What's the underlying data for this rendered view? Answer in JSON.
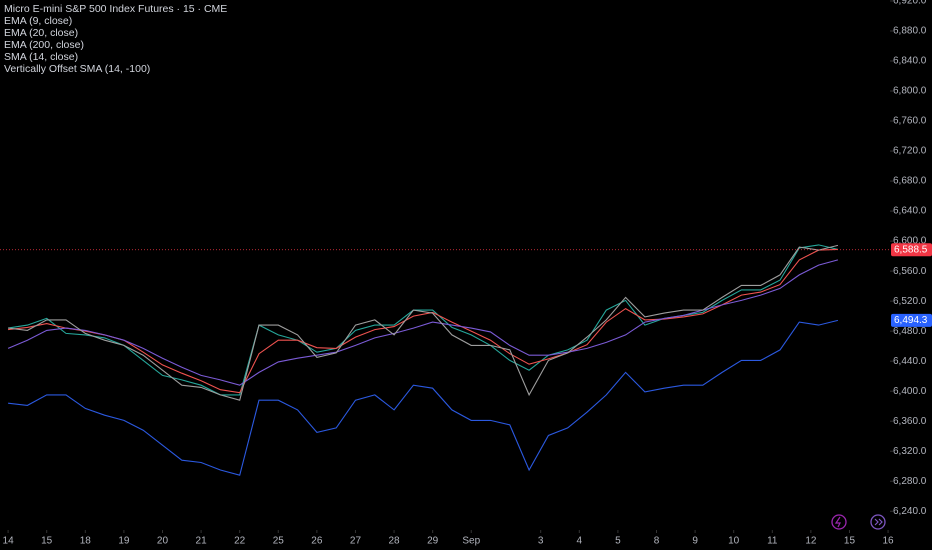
{
  "chart_data": {
    "type": "line",
    "title": "Micro E-mini S&P 500 Index Futures · 15 · CME",
    "x": [
      0,
      0.5,
      1,
      1.5,
      2,
      2.5,
      3,
      3.5,
      4,
      4.5,
      5,
      5.5,
      6,
      6.5,
      7,
      7.5,
      8,
      8.5,
      9,
      9.5,
      10,
      10.5,
      11,
      11.5,
      12,
      12.5,
      13,
      13.5,
      14,
      14.5,
      15,
      15.5,
      16,
      16.5,
      17,
      17.5,
      18,
      18.5,
      19,
      19.5,
      20,
      20.5,
      21,
      21.5
    ],
    "series": [
      {
        "name": "EMA (9, close)",
        "color": "#26a69a",
        "values": [
          6484,
          6488,
          6497,
          6477,
          6475,
          6471,
          6461,
          6441,
          6421,
          6415,
          6408,
          6395,
          6395,
          6488,
          6475,
          6468,
          6452,
          6457,
          6481,
          6488,
          6488,
          6508,
          6508,
          6485,
          6475,
          6461,
          6441,
          6428,
          6448,
          6455,
          6468,
          6508,
          6521,
          6488,
          6497,
          6501,
          6505,
          6521,
          6535,
          6535,
          6548,
          6591,
          6595,
          6589
        ]
      },
      {
        "name": "EMA (20, close)",
        "color": "#ef5350",
        "values": [
          6482,
          6485,
          6490,
          6484,
          6480,
          6475,
          6468,
          6452,
          6435,
          6424,
          6414,
          6402,
          6398,
          6450,
          6468,
          6468,
          6458,
          6457,
          6472,
          6482,
          6486,
          6500,
          6505,
          6492,
          6480,
          6468,
          6450,
          6436,
          6443,
          6451,
          6462,
          6492,
          6510,
          6495,
          6496,
          6499,
          6503,
          6515,
          6528,
          6532,
          6542,
          6575,
          6588,
          6589
        ]
      },
      {
        "name": "EMA (200, close)",
        "color": "#7b5bd6",
        "values": [
          6457,
          6468,
          6481,
          6484,
          6481,
          6475,
          6468,
          6457,
          6444,
          6432,
          6421,
          6415,
          6408,
          6425,
          6439,
          6444,
          6448,
          6452,
          6461,
          6471,
          6477,
          6484,
          6492,
          6488,
          6484,
          6479,
          6461,
          6448,
          6448,
          6452,
          6457,
          6465,
          6475,
          6492,
          6497,
          6501,
          6508,
          6515,
          6521,
          6528,
          6537,
          6555,
          6568,
          6575
        ]
      },
      {
        "name": "SMA (14, close)",
        "color": "#9e9e9e",
        "values": [
          6484,
          6481,
          6495,
          6495,
          6477,
          6468,
          6461,
          6448,
          6428,
          6408,
          6405,
          6395,
          6388,
          6488,
          6488,
          6475,
          6445,
          6451,
          6488,
          6495,
          6475,
          6508,
          6504,
          6475,
          6461,
          6461,
          6455,
          6395,
          6441,
          6451,
          6472,
          6495,
          6525,
          6499,
          6504,
          6508,
          6508,
          6525,
          6541,
          6541,
          6555,
          6592,
          6588,
          6594.3
        ]
      },
      {
        "name": "Vertically Offset SMA (14, -100)",
        "color": "#2b59e0",
        "values": [
          6384,
          6381,
          6395,
          6395,
          6377,
          6368,
          6361,
          6348,
          6328,
          6308,
          6305,
          6295,
          6288,
          6388,
          6388,
          6375,
          6345,
          6351,
          6388,
          6395,
          6375,
          6408,
          6404,
          6375,
          6361,
          6361,
          6355,
          6295,
          6341,
          6351,
          6372,
          6395,
          6425,
          6399,
          6404,
          6408,
          6408,
          6425,
          6441,
          6441,
          6455,
          6492,
          6488,
          6494.3
        ]
      }
    ],
    "xlim": [
      -0.21,
      22.85
    ],
    "xticks": [
      {
        "value": 0,
        "label": "14"
      },
      {
        "value": 1,
        "label": "15"
      },
      {
        "value": 2,
        "label": "18"
      },
      {
        "value": 3,
        "label": "19"
      },
      {
        "value": 4,
        "label": "20"
      },
      {
        "value": 5,
        "label": "21"
      },
      {
        "value": 6,
        "label": "22"
      },
      {
        "value": 7,
        "label": "25"
      },
      {
        "value": 8,
        "label": "26"
      },
      {
        "value": 9,
        "label": "27"
      },
      {
        "value": 10,
        "label": "28"
      },
      {
        "value": 11,
        "label": "29"
      },
      {
        "value": 12,
        "label": "Sep"
      },
      {
        "value": 13.8,
        "label": "3"
      },
      {
        "value": 14.8,
        "label": "4"
      },
      {
        "value": 15.8,
        "label": "5"
      },
      {
        "value": 16.8,
        "label": "8"
      },
      {
        "value": 17.8,
        "label": "9"
      },
      {
        "value": 18.8,
        "label": "10"
      },
      {
        "value": 19.8,
        "label": "11"
      },
      {
        "value": 20.8,
        "label": "12"
      },
      {
        "value": 21.8,
        "label": "15"
      },
      {
        "value": 22.8,
        "label": "16"
      }
    ],
    "ylim": [
      6215,
      6921.3
    ],
    "yticks": [
      {
        "value": 6240,
        "label": "6,240.0"
      },
      {
        "value": 6280,
        "label": "6,280.0"
      },
      {
        "value": 6320,
        "label": "6,320.0"
      },
      {
        "value": 6360,
        "label": "6,360.0"
      },
      {
        "value": 6400,
        "label": "6,400.0"
      },
      {
        "value": 6440,
        "label": "6,440.0"
      },
      {
        "value": 6480,
        "label": "6,480.0"
      },
      {
        "value": 6520,
        "label": "6,520.0"
      },
      {
        "value": 6560,
        "label": "6,560.0"
      },
      {
        "value": 6600,
        "label": "6,600.0"
      },
      {
        "value": 6640,
        "label": "6,640.0"
      },
      {
        "value": 6680,
        "label": "6,680.0"
      },
      {
        "value": 6720,
        "label": "6,720.0"
      },
      {
        "value": 6760,
        "label": "6,760.0"
      },
      {
        "value": 6800,
        "label": "6,800.0"
      },
      {
        "value": 6840,
        "label": "6,840.0"
      },
      {
        "value": 6880,
        "label": "6,880.0"
      },
      {
        "value": 6920,
        "label": "6,920.0"
      }
    ],
    "price_labels": [
      {
        "value": 6588.5,
        "label": "6,588.5",
        "color": "#f23645"
      },
      {
        "value": 6494.3,
        "label": "6,494.3",
        "color": "#2962ff"
      }
    ]
  }
}
